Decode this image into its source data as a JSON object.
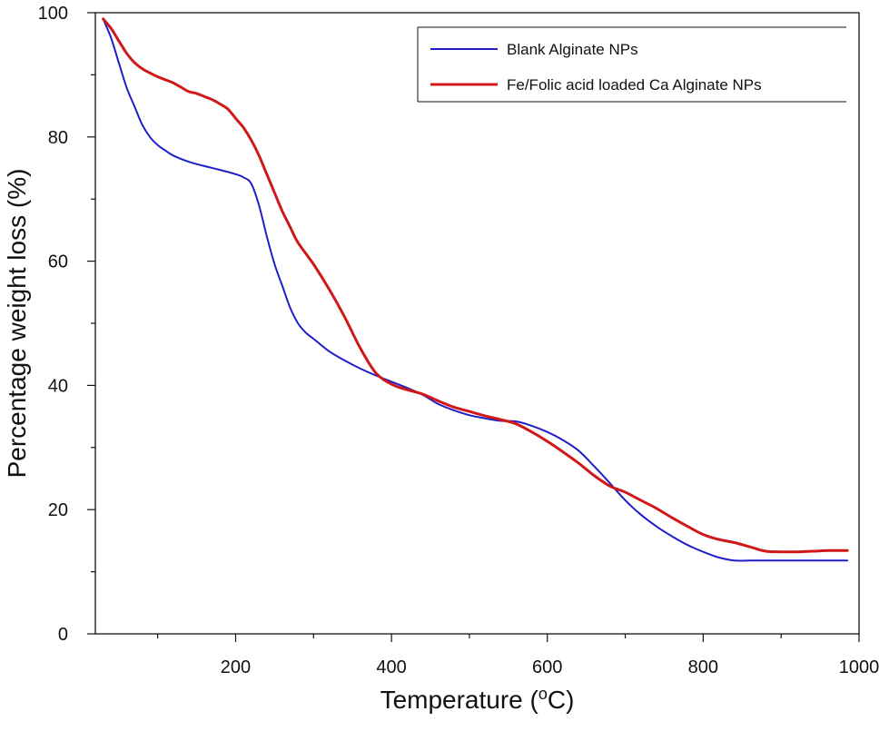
{
  "chart_data": {
    "type": "line",
    "title": "",
    "xlabel_pre": "Temperature (",
    "xlabel_sup": "o",
    "xlabel_post": "C)",
    "ylabel": "Percentage weight loss (%)",
    "xlim": [
      20,
      1000
    ],
    "ylim": [
      0,
      100
    ],
    "xticks": [
      200,
      400,
      600,
      800,
      1000
    ],
    "yticks": [
      0,
      20,
      40,
      60,
      80,
      100
    ],
    "grid": false,
    "legend_position": "top-right",
    "series": [
      {
        "name": "Blank Alginate NPs",
        "color": "#1f1fc8",
        "x": [
          30,
          40,
          50,
          60,
          70,
          80,
          90,
          100,
          110,
          120,
          140,
          160,
          180,
          200,
          210,
          220,
          230,
          240,
          250,
          260,
          270,
          280,
          290,
          300,
          320,
          340,
          360,
          380,
          400,
          420,
          440,
          460,
          480,
          500,
          520,
          540,
          560,
          580,
          600,
          620,
          640,
          660,
          680,
          700,
          720,
          740,
          760,
          780,
          800,
          820,
          840,
          860,
          880,
          900,
          920,
          940,
          960,
          985
        ],
        "y": [
          99,
          96,
          92,
          88,
          85,
          82,
          80,
          78.7,
          77.8,
          77,
          76,
          75.3,
          74.7,
          74,
          73.5,
          72.5,
          69,
          64,
          59.5,
          56,
          52.5,
          50,
          48.5,
          47.5,
          45.5,
          44,
          42.7,
          41.6,
          40.6,
          39.6,
          38.5,
          37,
          36,
          35.2,
          34.7,
          34.3,
          34.2,
          33.5,
          32.5,
          31.2,
          29.5,
          27,
          24.3,
          21.5,
          19.2,
          17.3,
          15.7,
          14.3,
          13.2,
          12.3,
          11.8,
          11.8,
          11.8,
          11.8,
          11.8,
          11.8,
          11.8,
          11.8
        ]
      },
      {
        "name": "Fe/Folic acid loaded Ca Alginate NPs",
        "color": "#d01818",
        "x": [
          30,
          40,
          50,
          60,
          70,
          80,
          90,
          100,
          110,
          120,
          130,
          140,
          150,
          160,
          170,
          180,
          190,
          200,
          210,
          220,
          230,
          240,
          250,
          260,
          270,
          280,
          300,
          320,
          340,
          360,
          380,
          400,
          420,
          440,
          460,
          480,
          500,
          520,
          540,
          560,
          580,
          600,
          620,
          640,
          660,
          680,
          700,
          720,
          740,
          760,
          780,
          800,
          820,
          840,
          860,
          880,
          900,
          920,
          940,
          960,
          985
        ],
        "y": [
          99,
          97.5,
          95.5,
          93.5,
          92,
          91,
          90.3,
          89.7,
          89.2,
          88.7,
          88,
          87.3,
          87,
          86.5,
          86,
          85.3,
          84.5,
          83,
          81.5,
          79.5,
          77,
          74,
          71,
          68,
          65.5,
          63,
          59.5,
          55.5,
          51,
          46,
          42,
          40.2,
          39.3,
          38.6,
          37.5,
          36.5,
          35.8,
          35.1,
          34.5,
          33.8,
          32.5,
          31,
          29.3,
          27.5,
          25.5,
          23.8,
          22.8,
          21.5,
          20.2,
          18.7,
          17.3,
          16,
          15.2,
          14.7,
          14,
          13.3,
          13.2,
          13.2,
          13.3,
          13.4,
          13.4
        ]
      }
    ]
  }
}
